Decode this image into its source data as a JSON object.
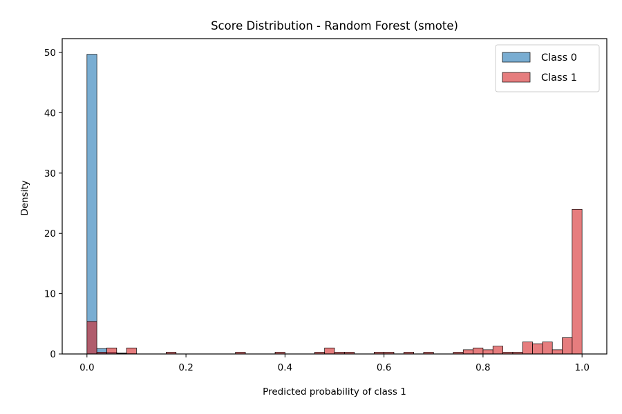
{
  "chart_data": {
    "type": "bar",
    "title": "Score Distribution - Random Forest (smote)",
    "xlabel": "Predicted probability of class 1",
    "ylabel": "Density",
    "xlim": [
      -0.05,
      1.05
    ],
    "ylim": [
      0,
      52.3
    ],
    "xticks": [
      0.0,
      0.2,
      0.4,
      0.6,
      0.8,
      1.0
    ],
    "xtick_labels": [
      "0.0",
      "0.2",
      "0.4",
      "0.6",
      "0.8",
      "1.0"
    ],
    "yticks": [
      0,
      10,
      20,
      30,
      40,
      50
    ],
    "ytick_labels": [
      "0",
      "10",
      "20",
      "30",
      "40",
      "50"
    ],
    "grid": false,
    "legend_position": "top-right",
    "bin_width": 0.02,
    "series": [
      {
        "name": "Class 0",
        "color": "#1f77b4",
        "opacity": 0.6,
        "bins": [
          {
            "x": 0.0,
            "y": 49.7
          },
          {
            "x": 0.02,
            "y": 0.9
          },
          {
            "x": 0.04,
            "y": 0.3
          },
          {
            "x": 0.06,
            "y": 0.15
          },
          {
            "x": 0.08,
            "y": 0.05
          }
        ]
      },
      {
        "name": "Class 1",
        "color": "#d62728",
        "opacity": 0.6,
        "bins": [
          {
            "x": 0.0,
            "y": 5.4
          },
          {
            "x": 0.02,
            "y": 0.3
          },
          {
            "x": 0.04,
            "y": 1.0
          },
          {
            "x": 0.06,
            "y": 0.1
          },
          {
            "x": 0.08,
            "y": 1.0
          },
          {
            "x": 0.16,
            "y": 0.3
          },
          {
            "x": 0.3,
            "y": 0.3
          },
          {
            "x": 0.38,
            "y": 0.3
          },
          {
            "x": 0.46,
            "y": 0.3
          },
          {
            "x": 0.48,
            "y": 1.0
          },
          {
            "x": 0.5,
            "y": 0.3
          },
          {
            "x": 0.52,
            "y": 0.3
          },
          {
            "x": 0.58,
            "y": 0.3
          },
          {
            "x": 0.6,
            "y": 0.3
          },
          {
            "x": 0.64,
            "y": 0.3
          },
          {
            "x": 0.68,
            "y": 0.3
          },
          {
            "x": 0.74,
            "y": 0.3
          },
          {
            "x": 0.76,
            "y": 0.7
          },
          {
            "x": 0.78,
            "y": 1.0
          },
          {
            "x": 0.8,
            "y": 0.7
          },
          {
            "x": 0.82,
            "y": 1.3
          },
          {
            "x": 0.84,
            "y": 0.3
          },
          {
            "x": 0.86,
            "y": 0.3
          },
          {
            "x": 0.88,
            "y": 2.0
          },
          {
            "x": 0.9,
            "y": 1.7
          },
          {
            "x": 0.92,
            "y": 2.0
          },
          {
            "x": 0.94,
            "y": 0.7
          },
          {
            "x": 0.96,
            "y": 2.7
          },
          {
            "x": 0.98,
            "y": 24.0
          }
        ]
      }
    ]
  }
}
